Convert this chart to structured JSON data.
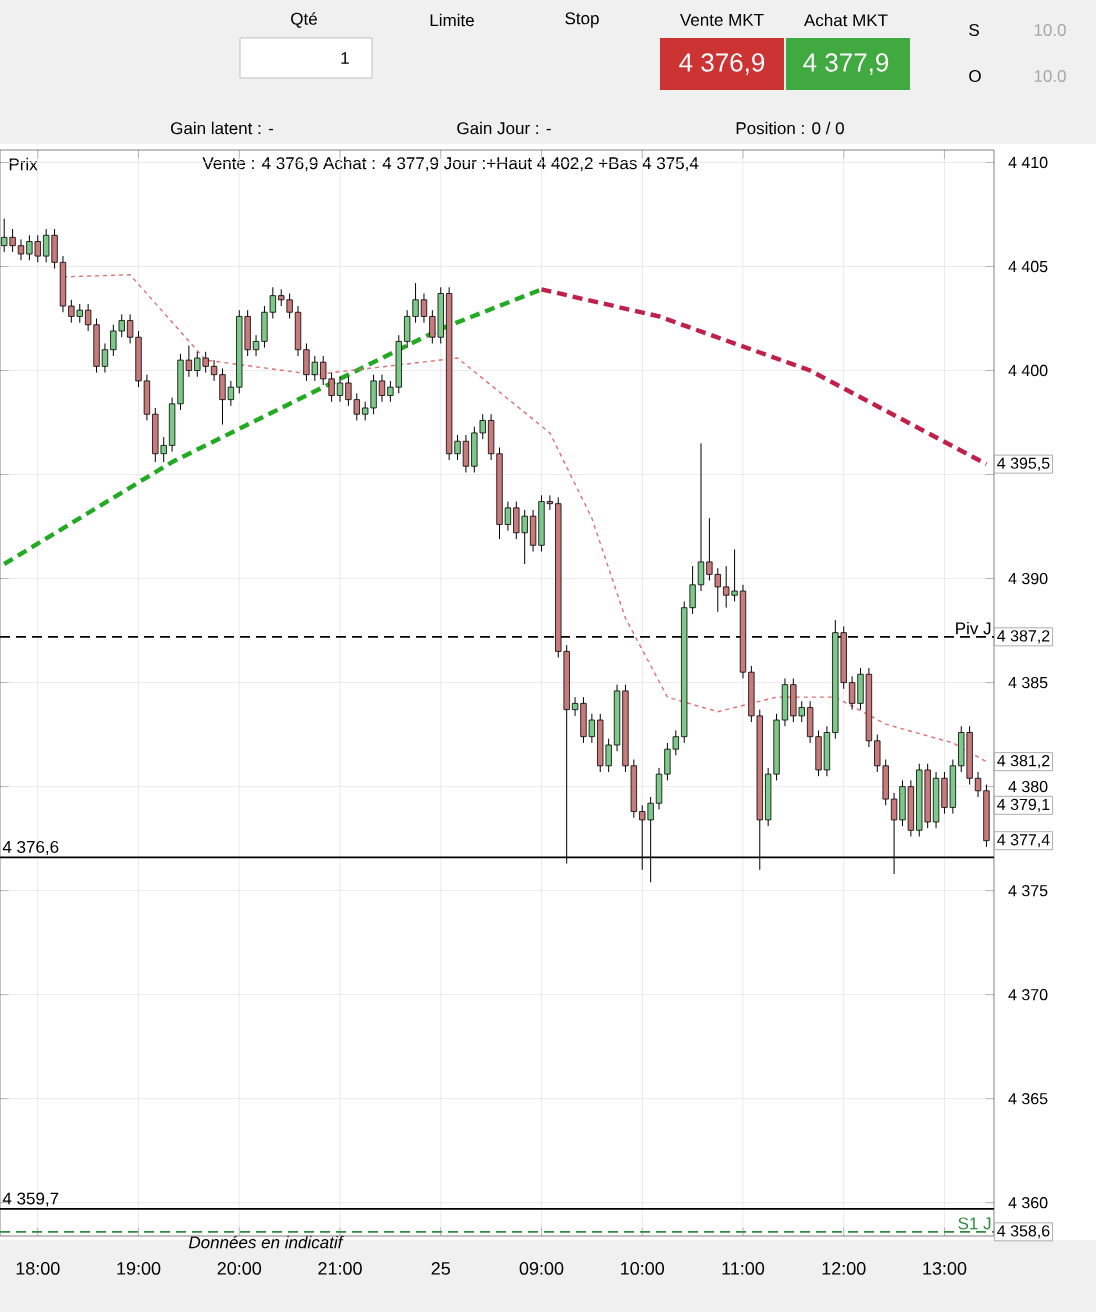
{
  "chart_data": {
    "type": "candlestick",
    "categories": [
      null,
      null,
      null,
      null,
      "18:00",
      null,
      null,
      null,
      null,
      null,
      null,
      null,
      null,
      null,
      null,
      null,
      "19:00",
      null,
      null,
      null,
      null,
      null,
      null,
      null,
      null,
      null,
      null,
      null,
      "20:00",
      null,
      null,
      null,
      null,
      null,
      null,
      null,
      null,
      null,
      null,
      null,
      "21:00",
      null,
      null,
      null,
      null,
      null,
      null,
      null,
      null,
      null,
      null,
      null,
      "25",
      null,
      null,
      null,
      null,
      null,
      null,
      null,
      null,
      null,
      null,
      null,
      "09:00",
      null,
      null,
      null,
      null,
      null,
      null,
      null,
      null,
      null,
      null,
      null,
      "10:00",
      null,
      null,
      null,
      null,
      null,
      null,
      null,
      null,
      null,
      null,
      null,
      "11:00",
      null,
      null,
      null,
      null,
      null,
      null,
      null,
      null,
      null,
      null,
      null,
      "12:00",
      null,
      null,
      null,
      null,
      null,
      null,
      null,
      null,
      null,
      null,
      null,
      "13:00",
      null,
      null,
      null,
      null,
      null
    ],
    "ohlc": [
      [
        4406.0,
        4407.3,
        4405.7,
        4406.4
      ],
      [
        4406.4,
        4406.8,
        4405.7,
        4406.0
      ],
      [
        4406.0,
        4406.3,
        4405.3,
        4405.6
      ],
      [
        4405.6,
        4406.5,
        4405.3,
        4406.2
      ],
      [
        4406.2,
        4406.5,
        4405.2,
        4405.5
      ],
      [
        4405.5,
        4406.8,
        4405.2,
        4406.5
      ],
      [
        4406.5,
        4406.8,
        4404.9,
        4405.2
      ],
      [
        4405.2,
        4405.5,
        4402.8,
        4403.1
      ],
      [
        4403.1,
        4403.4,
        4402.3,
        4402.6
      ],
      [
        4402.6,
        4403.2,
        4402.3,
        4402.9
      ],
      [
        4402.9,
        4403.2,
        4401.9,
        4402.2
      ],
      [
        4402.2,
        4402.5,
        4399.9,
        4400.2
      ],
      [
        4400.2,
        4401.3,
        4399.9,
        4401.0
      ],
      [
        4401.0,
        4402.2,
        4400.7,
        4401.9
      ],
      [
        4401.9,
        4402.7,
        4401.6,
        4402.4
      ],
      [
        4402.4,
        4402.7,
        4401.3,
        4401.6
      ],
      [
        4401.6,
        4401.9,
        4399.2,
        4399.5
      ],
      [
        4399.5,
        4399.8,
        4397.6,
        4397.9
      ],
      [
        4397.9,
        4398.2,
        4395.6,
        4396.0
      ],
      [
        4396.0,
        4396.8,
        4395.6,
        4396.4
      ],
      [
        4396.4,
        4398.7,
        4396.1,
        4398.4
      ],
      [
        4398.4,
        4400.8,
        4398.1,
        4400.5
      ],
      [
        4400.5,
        4401.2,
        4399.7,
        4400.0
      ],
      [
        4400.0,
        4400.9,
        4399.7,
        4400.6
      ],
      [
        4400.6,
        4400.9,
        4399.9,
        4400.2
      ],
      [
        4400.2,
        4400.5,
        4399.5,
        4399.8
      ],
      [
        4399.8,
        4400.1,
        4397.4,
        4398.6
      ],
      [
        4398.6,
        4399.5,
        4398.3,
        4399.2
      ],
      [
        4399.2,
        4402.9,
        4398.9,
        4402.6
      ],
      [
        4402.6,
        4402.9,
        4400.7,
        4401.0
      ],
      [
        4401.0,
        4401.7,
        4400.7,
        4401.4
      ],
      [
        4401.4,
        4403.1,
        4401.1,
        4402.8
      ],
      [
        4402.8,
        4404.0,
        4402.5,
        4403.6
      ],
      [
        4403.6,
        4403.9,
        4403.1,
        4403.4
      ],
      [
        4403.4,
        4403.7,
        4402.5,
        4402.8
      ],
      [
        4402.8,
        4403.1,
        4400.7,
        4401.0
      ],
      [
        4401.0,
        4401.3,
        4399.5,
        4399.8
      ],
      [
        4399.8,
        4400.7,
        4399.5,
        4400.4
      ],
      [
        4400.4,
        4400.7,
        4399.3,
        4399.6
      ],
      [
        4399.6,
        4399.9,
        4398.5,
        4398.8
      ],
      [
        4398.8,
        4399.7,
        4398.5,
        4399.4
      ],
      [
        4399.4,
        4399.7,
        4398.3,
        4398.6
      ],
      [
        4398.6,
        4398.9,
        4397.6,
        4397.9
      ],
      [
        4397.9,
        4398.5,
        4397.6,
        4398.2
      ],
      [
        4398.2,
        4399.8,
        4397.9,
        4399.5
      ],
      [
        4399.5,
        4399.8,
        4398.5,
        4398.8
      ],
      [
        4398.8,
        4399.5,
        4398.5,
        4399.2
      ],
      [
        4399.2,
        4401.7,
        4398.9,
        4401.4
      ],
      [
        4401.4,
        4402.9,
        4401.1,
        4402.6
      ],
      [
        4402.6,
        4404.2,
        4402.3,
        4403.4
      ],
      [
        4403.4,
        4403.7,
        4402.3,
        4402.6
      ],
      [
        4402.6,
        4402.9,
        4401.3,
        4401.6
      ],
      [
        4401.6,
        4404.0,
        4401.3,
        4403.7
      ],
      [
        4403.7,
        4404.0,
        4395.7,
        4396.0
      ],
      [
        4396.0,
        4396.9,
        4395.7,
        4396.6
      ],
      [
        4396.6,
        4396.9,
        4395.1,
        4395.4
      ],
      [
        4395.4,
        4397.3,
        4395.1,
        4397.0
      ],
      [
        4397.0,
        4397.9,
        4396.7,
        4397.6
      ],
      [
        4397.6,
        4397.9,
        4395.7,
        4396.0
      ],
      [
        4396.0,
        4396.3,
        4391.9,
        4392.6
      ],
      [
        4392.6,
        4393.7,
        4392.3,
        4393.4
      ],
      [
        4393.4,
        4393.7,
        4391.9,
        4392.2
      ],
      [
        4392.2,
        4393.3,
        4390.7,
        4393.0
      ],
      [
        4393.0,
        4393.3,
        4391.3,
        4391.6
      ],
      [
        4391.6,
        4394.0,
        4391.3,
        4393.7
      ],
      [
        4393.7,
        4394.0,
        4393.3,
        4393.6
      ],
      [
        4393.6,
        4393.9,
        4386.2,
        4386.5
      ],
      [
        4386.5,
        4386.8,
        4376.3,
        4383.7
      ],
      [
        4383.7,
        4384.3,
        4383.4,
        4384.0
      ],
      [
        4384.0,
        4384.3,
        4382.1,
        4382.4
      ],
      [
        4382.4,
        4383.5,
        4382.1,
        4383.2
      ],
      [
        4383.2,
        4383.5,
        4380.7,
        4381.0
      ],
      [
        4381.0,
        4382.3,
        4380.7,
        4382.0
      ],
      [
        4382.0,
        4384.9,
        4381.7,
        4384.6
      ],
      [
        4384.6,
        4384.9,
        4380.7,
        4381.0
      ],
      [
        4381.0,
        4381.3,
        4378.5,
        4378.8
      ],
      [
        4378.8,
        4379.1,
        4376.0,
        4378.4
      ],
      [
        4378.4,
        4379.5,
        4375.4,
        4379.2
      ],
      [
        4379.2,
        4380.9,
        4378.9,
        4380.6
      ],
      [
        4380.6,
        4382.1,
        4380.3,
        4381.8
      ],
      [
        4381.8,
        4382.7,
        4381.5,
        4382.4
      ],
      [
        4382.4,
        4388.9,
        4382.1,
        4388.6
      ],
      [
        4388.6,
        4390.6,
        4388.3,
        4389.7
      ],
      [
        4389.7,
        4396.5,
        4389.4,
        4390.8
      ],
      [
        4390.8,
        4392.9,
        4389.9,
        4390.2
      ],
      [
        4390.2,
        4390.5,
        4388.4,
        4389.6
      ],
      [
        4389.6,
        4390.6,
        4388.6,
        4389.2
      ],
      [
        4389.2,
        4391.4,
        4388.9,
        4389.4
      ],
      [
        4389.4,
        4389.7,
        4385.2,
        4385.5
      ],
      [
        4385.5,
        4385.8,
        4383.1,
        4383.4
      ],
      [
        4383.4,
        4383.7,
        4376.0,
        4378.4
      ],
      [
        4378.4,
        4380.9,
        4378.1,
        4380.6
      ],
      [
        4380.6,
        4383.5,
        4380.3,
        4383.2
      ],
      [
        4383.2,
        4385.2,
        4382.9,
        4384.9
      ],
      [
        4384.9,
        4385.2,
        4383.1,
        4383.4
      ],
      [
        4383.4,
        4384.1,
        4383.1,
        4383.8
      ],
      [
        4383.8,
        4384.1,
        4382.1,
        4382.4
      ],
      [
        4382.4,
        4382.7,
        4380.5,
        4380.8
      ],
      [
        4380.8,
        4382.9,
        4380.5,
        4382.6
      ],
      [
        4382.6,
        4388.0,
        4382.3,
        4387.4
      ],
      [
        4387.4,
        4387.7,
        4384.7,
        4385.0
      ],
      [
        4385.0,
        4385.3,
        4383.7,
        4384.0
      ],
      [
        4384.0,
        4385.7,
        4383.7,
        4385.4
      ],
      [
        4385.4,
        4385.7,
        4381.9,
        4382.2
      ],
      [
        4382.2,
        4382.5,
        4380.7,
        4381.0
      ],
      [
        4381.0,
        4381.3,
        4379.1,
        4379.4
      ],
      [
        4379.4,
        4379.7,
        4375.8,
        4378.4
      ],
      [
        4378.4,
        4380.3,
        4378.1,
        4380.0
      ],
      [
        4380.0,
        4380.3,
        4377.6,
        4377.9
      ],
      [
        4377.9,
        4381.1,
        4377.6,
        4380.8
      ],
      [
        4380.8,
        4381.1,
        4378.0,
        4378.3
      ],
      [
        4378.3,
        4380.7,
        4378.0,
        4380.4
      ],
      [
        4380.4,
        4380.7,
        4378.7,
        4379.0
      ],
      [
        4379.0,
        4381.3,
        4378.7,
        4381.0
      ],
      [
        4381.0,
        4382.9,
        4380.7,
        4382.6
      ],
      [
        4382.6,
        4382.9,
        4380.1,
        4380.4
      ],
      [
        4380.4,
        4380.7,
        4379.5,
        4379.8
      ],
      [
        4379.8,
        4380.1,
        4377.1,
        4377.4
      ]
    ],
    "series": [
      {
        "type": "line",
        "color": "#22aa22",
        "line_style": "dashed",
        "values": [
          4390.7,
          null,
          null,
          null,
          null,
          null,
          null,
          null,
          null,
          null,
          null,
          null,
          null,
          null,
          null,
          null,
          null,
          null,
          null,
          null,
          4395.6,
          null,
          null,
          null,
          null,
          null,
          null,
          null,
          null,
          null,
          null,
          null,
          null,
          null,
          null,
          null,
          null,
          null,
          null,
          null,
          null,
          null,
          null,
          null,
          null,
          null,
          null,
          null,
          null,
          null,
          null,
          null,
          4402.0,
          null,
          null,
          null,
          null,
          null,
          null,
          null,
          null,
          null,
          null,
          null,
          4403.9,
          null,
          null,
          null,
          null,
          null,
          null,
          null,
          null,
          null,
          null,
          null,
          null,
          null,
          null,
          null,
          null,
          null,
          null,
          null,
          null,
          null,
          null,
          null,
          null,
          null,
          null,
          null,
          null,
          null,
          null,
          null,
          null,
          null,
          null,
          null,
          null,
          null,
          null,
          null,
          null,
          null,
          null,
          null,
          null,
          null,
          null,
          null,
          null,
          null,
          null,
          null,
          null,
          null
        ]
      },
      {
        "type": "line",
        "color": "#c0204a",
        "line_style": "dashed",
        "values": [
          null,
          null,
          null,
          null,
          null,
          null,
          null,
          null,
          null,
          null,
          null,
          null,
          null,
          null,
          null,
          null,
          null,
          null,
          null,
          null,
          null,
          null,
          null,
          null,
          null,
          null,
          null,
          null,
          null,
          null,
          null,
          null,
          null,
          null,
          null,
          null,
          null,
          null,
          null,
          null,
          null,
          null,
          null,
          null,
          null,
          null,
          null,
          null,
          null,
          null,
          null,
          null,
          null,
          null,
          null,
          null,
          null,
          null,
          null,
          null,
          null,
          null,
          null,
          null,
          4403.9,
          null,
          null,
          null,
          null,
          null,
          null,
          null,
          null,
          null,
          null,
          null,
          null,
          null,
          4402.6,
          null,
          null,
          null,
          null,
          null,
          null,
          null,
          null,
          null,
          null,
          null,
          null,
          null,
          null,
          null,
          null,
          null,
          4400.0,
          null,
          null,
          null,
          null,
          null,
          null,
          null,
          null,
          null,
          null,
          null,
          null,
          null,
          null,
          null,
          null,
          null,
          null,
          null,
          null,
          4395.5
        ]
      },
      {
        "type": "line",
        "color": "#e07070",
        "line_style": "dotted",
        "values": [
          null,
          null,
          null,
          null,
          null,
          null,
          null,
          4404.5,
          null,
          null,
          null,
          null,
          null,
          null,
          null,
          4404.6,
          null,
          null,
          null,
          null,
          null,
          null,
          null,
          null,
          4400.5,
          null,
          null,
          null,
          null,
          null,
          null,
          null,
          null,
          null,
          null,
          null,
          null,
          4399.8,
          null,
          null,
          null,
          null,
          null,
          null,
          null,
          null,
          null,
          null,
          null,
          null,
          null,
          null,
          null,
          null,
          4400.6,
          null,
          null,
          null,
          null,
          null,
          null,
          null,
          null,
          null,
          null,
          4397.0,
          null,
          null,
          null,
          null,
          4392.9,
          null,
          null,
          null,
          4388.1,
          null,
          null,
          null,
          null,
          4384.3,
          null,
          null,
          null,
          null,
          null,
          4383.6,
          null,
          null,
          null,
          null,
          null,
          null,
          4384.3,
          null,
          null,
          null,
          null,
          null,
          null,
          4384.3,
          null,
          null,
          null,
          null,
          null,
          4383.0,
          null,
          null,
          null,
          null,
          null,
          null,
          null,
          4382.1,
          null,
          null,
          null,
          4381.2
        ]
      }
    ],
    "ylim": [
      4358.4,
      4410.6
    ],
    "yticks": [
      {
        "value": 4360,
        "label": "4 360"
      },
      {
        "value": 4365,
        "label": "4 365"
      },
      {
        "value": 4370,
        "label": "4 370"
      },
      {
        "value": 4375,
        "label": "4 375"
      },
      {
        "value": 4380,
        "label": "4 380"
      },
      {
        "value": 4385,
        "label": "4 385"
      },
      {
        "value": 4390,
        "label": "4 390"
      },
      {
        "value": 4395,
        "label": null
      },
      {
        "value": 4400,
        "label": "4 400"
      },
      {
        "value": 4405,
        "label": "4 405"
      },
      {
        "value": 4410,
        "label": "4 410"
      }
    ],
    "grid": true,
    "ref_lines": [
      {
        "axis": "y",
        "value": 4387.2,
        "label": "Piv J",
        "line_style": "dashed",
        "color": "#000000"
      },
      {
        "axis": "y",
        "value": 4358.6,
        "label": "S1 J",
        "line_style": "dashed",
        "color": "#2e8b3e"
      },
      {
        "axis": "y",
        "value": 4376.6,
        "label": "4 376,6",
        "color": "#000000"
      },
      {
        "axis": "y",
        "value": 4359.7,
        "label": "4 359,7",
        "color": "#000000"
      }
    ],
    "annotations": [
      "Qté",
      "1",
      "Limite",
      "Stop",
      "Vente MKT",
      "Achat MKT",
      "4 376,9",
      "4 377,9",
      "S",
      "O",
      "10.0",
      "10.0",
      "Gain latent : -",
      "Gain Jour : -",
      "Position : 0 / 0",
      "Prix",
      "Vente : 4 376,9 Achat : 4 377,9 Jour :+Haut 4 402,2 +Bas 4 375,4",
      "Données en indicatif",
      {
        "text": "4 395,5",
        "y": 4395.5
      },
      {
        "text": "4 387,2",
        "y": 4387.2
      },
      {
        "text": "4 381,2",
        "y": 4381.2
      },
      {
        "text": "4 379,1",
        "y": 4379.1
      },
      {
        "text": "4 377,4",
        "y": 4377.4
      },
      {
        "text": "4 358,6",
        "y": 4358.6
      }
    ]
  }
}
